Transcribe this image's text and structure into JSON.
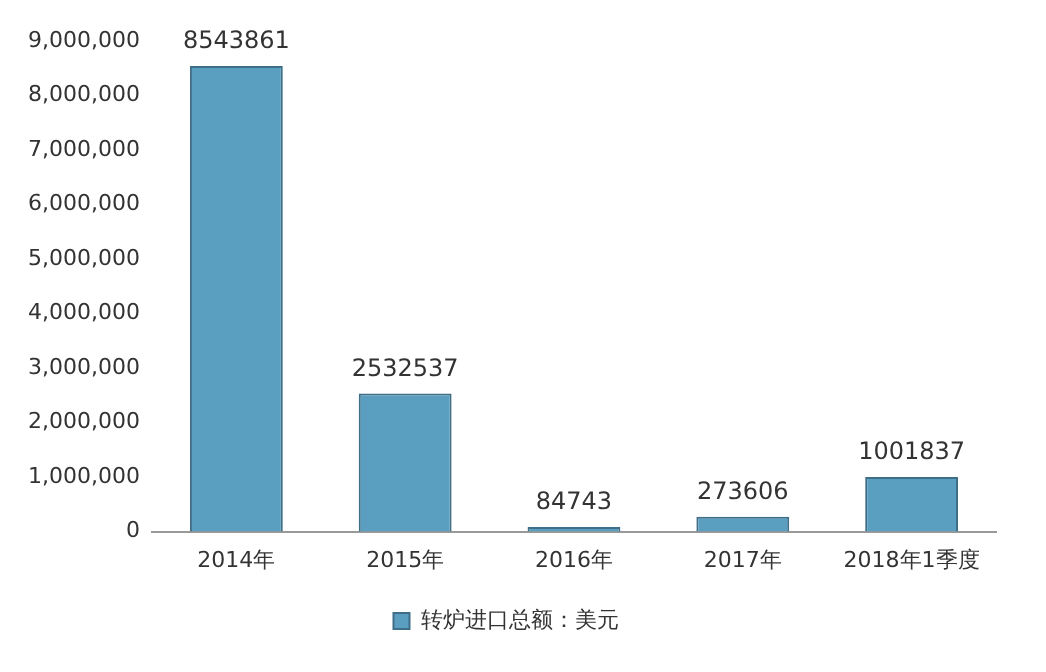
{
  "chart_data": {
    "type": "bar",
    "categories": [
      "2014年",
      "2015年",
      "2016年",
      "2017年",
      "2018年1季度"
    ],
    "series": [
      {
        "name": "转炉进口总额：美元",
        "color": "#5b9fc0",
        "values": [
          8543861,
          2532537,
          84743,
          273606,
          1001837
        ]
      }
    ],
    "ylim": [
      0,
      9000000
    ],
    "yticks": [
      0,
      {
        "value": 1000000,
        "label": "1,000,000"
      },
      {
        "value": 2000000,
        "label": "2,000,000"
      },
      {
        "value": 3000000,
        "label": "3,000,000"
      },
      {
        "value": 4000000,
        "label": "4,000,000"
      },
      {
        "value": 5000000,
        "label": "5,000,000"
      },
      {
        "value": 6000000,
        "label": "6,000,000"
      },
      {
        "value": 7000000,
        "label": "7,000,000"
      },
      {
        "value": 8000000,
        "label": "8,000,000"
      },
      {
        "value": 9000000,
        "label": "9,000,000"
      }
    ],
    "grid": false,
    "legend": "bottom",
    "data_labels": true
  }
}
